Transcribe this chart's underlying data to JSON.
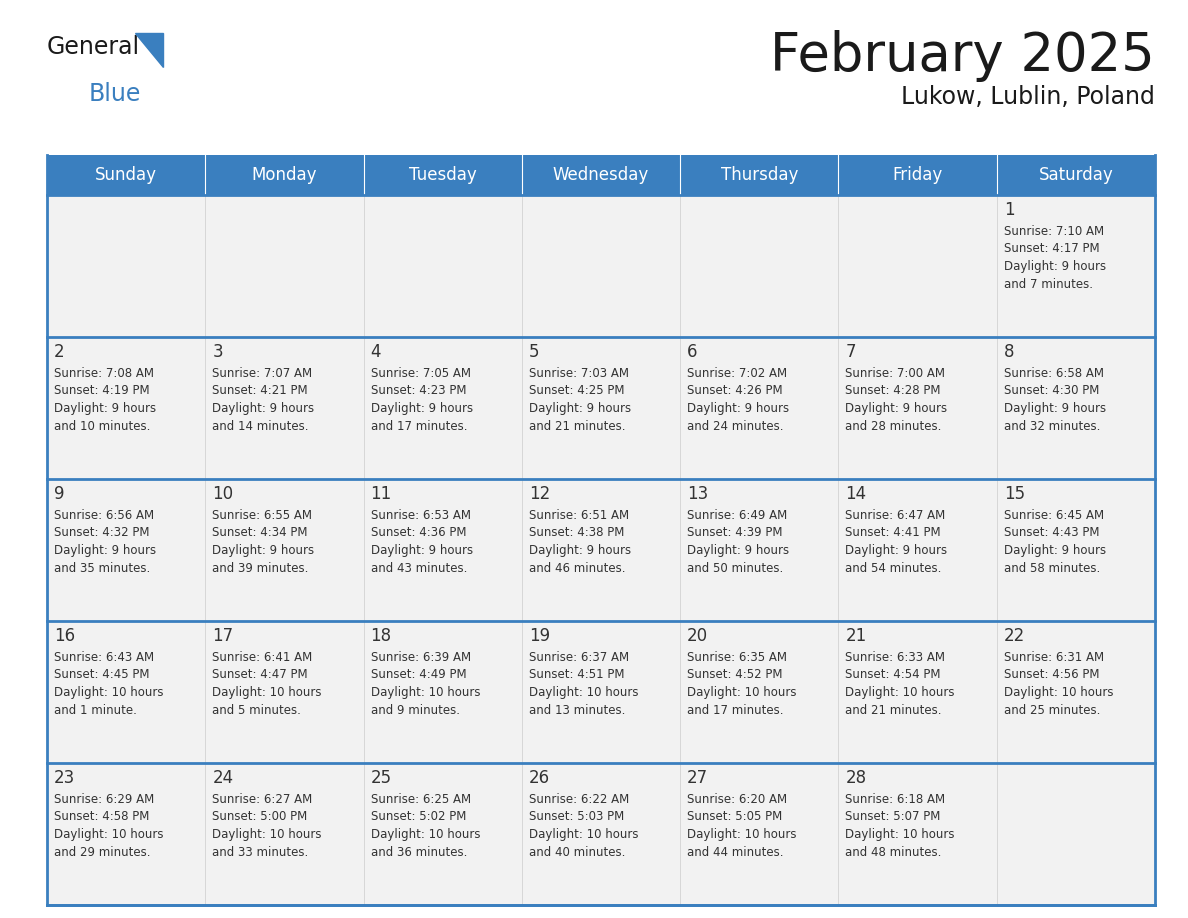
{
  "title": "February 2025",
  "subtitle": "Lukow, Lublin, Poland",
  "header_bg_color": "#3a7fbf",
  "header_text_color": "#ffffff",
  "border_color": "#3a7fbf",
  "cell_bg_color": "#f2f2f2",
  "day_headers": [
    "Sunday",
    "Monday",
    "Tuesday",
    "Wednesday",
    "Thursday",
    "Friday",
    "Saturday"
  ],
  "title_color": "#1a1a1a",
  "subtitle_color": "#1a1a1a",
  "cell_text_color": "#333333",
  "cell_number_color": "#333333",
  "logo_general_color": "#1a1a1a",
  "logo_blue_color": "#3a7fbf",
  "logo_triangle_color": "#3a7fbf",
  "weeks": [
    [
      {
        "day": null,
        "info": null
      },
      {
        "day": null,
        "info": null
      },
      {
        "day": null,
        "info": null
      },
      {
        "day": null,
        "info": null
      },
      {
        "day": null,
        "info": null
      },
      {
        "day": null,
        "info": null
      },
      {
        "day": 1,
        "info": "Sunrise: 7:10 AM\nSunset: 4:17 PM\nDaylight: 9 hours\nand 7 minutes."
      }
    ],
    [
      {
        "day": 2,
        "info": "Sunrise: 7:08 AM\nSunset: 4:19 PM\nDaylight: 9 hours\nand 10 minutes."
      },
      {
        "day": 3,
        "info": "Sunrise: 7:07 AM\nSunset: 4:21 PM\nDaylight: 9 hours\nand 14 minutes."
      },
      {
        "day": 4,
        "info": "Sunrise: 7:05 AM\nSunset: 4:23 PM\nDaylight: 9 hours\nand 17 minutes."
      },
      {
        "day": 5,
        "info": "Sunrise: 7:03 AM\nSunset: 4:25 PM\nDaylight: 9 hours\nand 21 minutes."
      },
      {
        "day": 6,
        "info": "Sunrise: 7:02 AM\nSunset: 4:26 PM\nDaylight: 9 hours\nand 24 minutes."
      },
      {
        "day": 7,
        "info": "Sunrise: 7:00 AM\nSunset: 4:28 PM\nDaylight: 9 hours\nand 28 minutes."
      },
      {
        "day": 8,
        "info": "Sunrise: 6:58 AM\nSunset: 4:30 PM\nDaylight: 9 hours\nand 32 minutes."
      }
    ],
    [
      {
        "day": 9,
        "info": "Sunrise: 6:56 AM\nSunset: 4:32 PM\nDaylight: 9 hours\nand 35 minutes."
      },
      {
        "day": 10,
        "info": "Sunrise: 6:55 AM\nSunset: 4:34 PM\nDaylight: 9 hours\nand 39 minutes."
      },
      {
        "day": 11,
        "info": "Sunrise: 6:53 AM\nSunset: 4:36 PM\nDaylight: 9 hours\nand 43 minutes."
      },
      {
        "day": 12,
        "info": "Sunrise: 6:51 AM\nSunset: 4:38 PM\nDaylight: 9 hours\nand 46 minutes."
      },
      {
        "day": 13,
        "info": "Sunrise: 6:49 AM\nSunset: 4:39 PM\nDaylight: 9 hours\nand 50 minutes."
      },
      {
        "day": 14,
        "info": "Sunrise: 6:47 AM\nSunset: 4:41 PM\nDaylight: 9 hours\nand 54 minutes."
      },
      {
        "day": 15,
        "info": "Sunrise: 6:45 AM\nSunset: 4:43 PM\nDaylight: 9 hours\nand 58 minutes."
      }
    ],
    [
      {
        "day": 16,
        "info": "Sunrise: 6:43 AM\nSunset: 4:45 PM\nDaylight: 10 hours\nand 1 minute."
      },
      {
        "day": 17,
        "info": "Sunrise: 6:41 AM\nSunset: 4:47 PM\nDaylight: 10 hours\nand 5 minutes."
      },
      {
        "day": 18,
        "info": "Sunrise: 6:39 AM\nSunset: 4:49 PM\nDaylight: 10 hours\nand 9 minutes."
      },
      {
        "day": 19,
        "info": "Sunrise: 6:37 AM\nSunset: 4:51 PM\nDaylight: 10 hours\nand 13 minutes."
      },
      {
        "day": 20,
        "info": "Sunrise: 6:35 AM\nSunset: 4:52 PM\nDaylight: 10 hours\nand 17 minutes."
      },
      {
        "day": 21,
        "info": "Sunrise: 6:33 AM\nSunset: 4:54 PM\nDaylight: 10 hours\nand 21 minutes."
      },
      {
        "day": 22,
        "info": "Sunrise: 6:31 AM\nSunset: 4:56 PM\nDaylight: 10 hours\nand 25 minutes."
      }
    ],
    [
      {
        "day": 23,
        "info": "Sunrise: 6:29 AM\nSunset: 4:58 PM\nDaylight: 10 hours\nand 29 minutes."
      },
      {
        "day": 24,
        "info": "Sunrise: 6:27 AM\nSunset: 5:00 PM\nDaylight: 10 hours\nand 33 minutes."
      },
      {
        "day": 25,
        "info": "Sunrise: 6:25 AM\nSunset: 5:02 PM\nDaylight: 10 hours\nand 36 minutes."
      },
      {
        "day": 26,
        "info": "Sunrise: 6:22 AM\nSunset: 5:03 PM\nDaylight: 10 hours\nand 40 minutes."
      },
      {
        "day": 27,
        "info": "Sunrise: 6:20 AM\nSunset: 5:05 PM\nDaylight: 10 hours\nand 44 minutes."
      },
      {
        "day": 28,
        "info": "Sunrise: 6:18 AM\nSunset: 5:07 PM\nDaylight: 10 hours\nand 48 minutes."
      },
      {
        "day": null,
        "info": null
      }
    ]
  ]
}
